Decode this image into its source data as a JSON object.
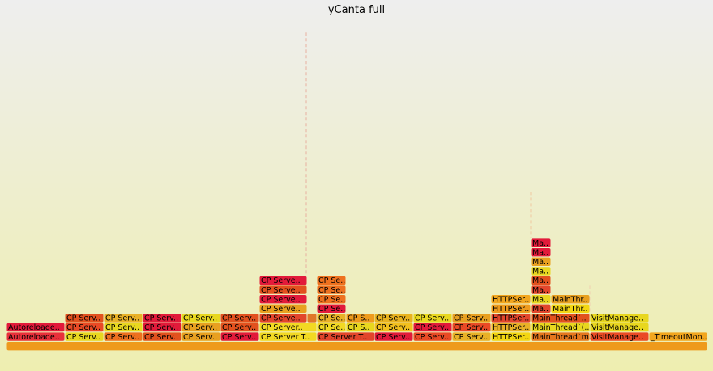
{
  "title": "yCanta full",
  "chart_data": {
    "type": "flamegraph",
    "title": "yCanta full",
    "level_unit": "stack depth",
    "width_unit": "samples",
    "total_samples": 865,
    "frames": [
      {
        "label": "",
        "level": 0,
        "start": 0,
        "width": 865,
        "color": "#ee9a1c"
      },
      {
        "label": "Autoreloade..",
        "level": 1,
        "start": 0,
        "width": 72,
        "color": "#e9303a"
      },
      {
        "label": "CP Serv..",
        "level": 1,
        "start": 72,
        "width": 48,
        "color": "#e8d71f"
      },
      {
        "label": "CP Serv..",
        "level": 1,
        "start": 120,
        "width": 48,
        "color": "#ee701e"
      },
      {
        "label": "CP Serv..",
        "level": 1,
        "start": 168,
        "width": 48,
        "color": "#e2511e"
      },
      {
        "label": "CP Serv..",
        "level": 1,
        "start": 216,
        "width": 48,
        "color": "#e8a020"
      },
      {
        "label": "CP Serv..",
        "level": 1,
        "start": 264,
        "width": 48,
        "color": "#e21a3a"
      },
      {
        "label": "CP Server T..",
        "level": 1,
        "start": 312,
        "width": 71,
        "color": "#f2d923"
      },
      {
        "label": "CP Server T..",
        "level": 1,
        "start": 383,
        "width": 71,
        "color": "#e2452b"
      },
      {
        "label": "CP Serv..",
        "level": 1,
        "start": 454,
        "width": 48,
        "color": "#e21a3a"
      },
      {
        "label": "CP Serv..",
        "level": 1,
        "start": 502,
        "width": 48,
        "color": "#ea4a25"
      },
      {
        "label": "CP Serv..",
        "level": 1,
        "start": 550,
        "width": 48,
        "color": "#e9b127"
      },
      {
        "label": "HTTPSer..",
        "level": 1,
        "start": 598,
        "width": 49,
        "color": "#f3d612"
      },
      {
        "label": "MainThread`m..",
        "level": 1,
        "start": 647,
        "width": 73,
        "color": "#e5771e"
      },
      {
        "label": "VisitManage..",
        "level": 1,
        "start": 720,
        "width": 73,
        "color": "#ea4a25"
      },
      {
        "label": "_TimeoutMon..",
        "level": 1,
        "start": 793,
        "width": 72,
        "color": "#f2a61e"
      },
      {
        "label": "Autoreloade..",
        "level": 2,
        "start": 0,
        "width": 72,
        "color": "#e21a3a"
      },
      {
        "label": "CP Serv..",
        "level": 2,
        "start": 72,
        "width": 48,
        "color": "#ea4a25"
      },
      {
        "label": "CP Serv..",
        "level": 2,
        "start": 120,
        "width": 48,
        "color": "#e8d71f"
      },
      {
        "label": "CP Serv..",
        "level": 2,
        "start": 168,
        "width": 48,
        "color": "#e21a3a"
      },
      {
        "label": "CP Serv..",
        "level": 2,
        "start": 216,
        "width": 48,
        "color": "#e8a020"
      },
      {
        "label": "CP Serv..",
        "level": 2,
        "start": 264,
        "width": 48,
        "color": "#e2511e"
      },
      {
        "label": "CP Server..",
        "level": 2,
        "start": 312,
        "width": 71,
        "color": "#f2d923"
      },
      {
        "label": "CP Se..",
        "level": 2,
        "start": 383,
        "width": 36,
        "color": "#f2d923"
      },
      {
        "label": "CP S..",
        "level": 2,
        "start": 419,
        "width": 35,
        "color": "#e8d71f"
      },
      {
        "label": "CP Serv..",
        "level": 2,
        "start": 454,
        "width": 48,
        "color": "#f2c01e"
      },
      {
        "label": "CP Serv..",
        "level": 2,
        "start": 502,
        "width": 48,
        "color": "#e21a3a"
      },
      {
        "label": "CP Serv..",
        "level": 2,
        "start": 550,
        "width": 48,
        "color": "#ea4a25"
      },
      {
        "label": "HTTPSer..",
        "level": 2,
        "start": 598,
        "width": 49,
        "color": "#e9b127"
      },
      {
        "label": "MainThread`(..",
        "level": 2,
        "start": 647,
        "width": 73,
        "color": "#e8d71f"
      },
      {
        "label": "VisitManage..",
        "level": 2,
        "start": 720,
        "width": 73,
        "color": "#e8d71f"
      },
      {
        "label": "CP Serv..",
        "level": 3,
        "start": 72,
        "width": 48,
        "color": "#e2511e"
      },
      {
        "label": "CP Serv..",
        "level": 3,
        "start": 120,
        "width": 48,
        "color": "#e9b127"
      },
      {
        "label": "CP Serv..",
        "level": 3,
        "start": 168,
        "width": 48,
        "color": "#e21a3a"
      },
      {
        "label": "CP Serv..",
        "level": 3,
        "start": 216,
        "width": 48,
        "color": "#e8d71f"
      },
      {
        "label": "CP Serv..",
        "level": 3,
        "start": 264,
        "width": 48,
        "color": "#e2511e"
      },
      {
        "label": "CP Serve..",
        "level": 3,
        "start": 312,
        "width": 59,
        "color": "#e2452b"
      },
      {
        "label": "",
        "level": 3,
        "start": 371,
        "width": 12,
        "color": "#e0762a"
      },
      {
        "label": "CP Se..",
        "level": 3,
        "start": 383,
        "width": 36,
        "color": "#e9b127"
      },
      {
        "label": "CP S..",
        "level": 3,
        "start": 419,
        "width": 35,
        "color": "#ee9a1c"
      },
      {
        "label": "CP Serv..",
        "level": 3,
        "start": 454,
        "width": 48,
        "color": "#e8b21f"
      },
      {
        "label": "CP Serv..",
        "level": 3,
        "start": 502,
        "width": 48,
        "color": "#e8d71f"
      },
      {
        "label": "CP Serv..",
        "level": 3,
        "start": 550,
        "width": 48,
        "color": "#e8a020"
      },
      {
        "label": "HTTPSer..",
        "level": 3,
        "start": 598,
        "width": 49,
        "color": "#e2452b"
      },
      {
        "label": "MainThread`..",
        "level": 3,
        "start": 647,
        "width": 73,
        "color": "#e2511e"
      },
      {
        "label": "VisitManage..",
        "level": 3,
        "start": 720,
        "width": 73,
        "color": "#e8d71f"
      },
      {
        "label": "CP Serve..",
        "level": 4,
        "start": 312,
        "width": 59,
        "color": "#e8a020"
      },
      {
        "label": "CP Se..",
        "level": 4,
        "start": 383,
        "width": 36,
        "color": "#e21a3a"
      },
      {
        "label": "HTTPSer..",
        "level": 4,
        "start": 598,
        "width": 49,
        "color": "#ee9a1c"
      },
      {
        "label": "Ma..",
        "level": 4,
        "start": 647,
        "width": 25,
        "color": "#e2452b"
      },
      {
        "label": "MainThr..",
        "level": 4,
        "start": 672,
        "width": 48,
        "color": "#f3d612"
      },
      {
        "label": "CP Serve..",
        "level": 5,
        "start": 312,
        "width": 59,
        "color": "#e21a3a"
      },
      {
        "label": "CP Se..",
        "level": 5,
        "start": 383,
        "width": 36,
        "color": "#ee701e"
      },
      {
        "label": "HTTPSer..",
        "level": 5,
        "start": 598,
        "width": 49,
        "color": "#f2a61e"
      },
      {
        "label": "Ma..",
        "level": 5,
        "start": 647,
        "width": 25,
        "color": "#e8d71f"
      },
      {
        "label": "MainThr..",
        "level": 5,
        "start": 672,
        "width": 48,
        "color": "#e8a020"
      },
      {
        "label": "CP Serve..",
        "level": 6,
        "start": 312,
        "width": 59,
        "color": "#e2511e"
      },
      {
        "label": "CP Se..",
        "level": 6,
        "start": 383,
        "width": 36,
        "color": "#ee701e"
      },
      {
        "label": "Ma..",
        "level": 6,
        "start": 647,
        "width": 25,
        "color": "#e2452b"
      },
      {
        "label": "CP Serve..",
        "level": 7,
        "start": 312,
        "width": 59,
        "color": "#e21a3a"
      },
      {
        "label": "CP Se..",
        "level": 7,
        "start": 383,
        "width": 36,
        "color": "#ee701e"
      },
      {
        "label": "Ma..",
        "level": 7,
        "start": 647,
        "width": 25,
        "color": "#e2511e"
      },
      {
        "label": "Ma..",
        "level": 8,
        "start": 647,
        "width": 25,
        "color": "#e8d71f"
      },
      {
        "label": "Ma..",
        "level": 9,
        "start": 647,
        "width": 25,
        "color": "#e8a020"
      },
      {
        "label": "Ma..",
        "level": 10,
        "start": 647,
        "width": 25,
        "color": "#e21a3a"
      },
      {
        "label": "Ma..",
        "level": 11,
        "start": 647,
        "width": 25,
        "color": "#e21a3a"
      }
    ],
    "thin_stacks": [
      {
        "start": 370,
        "from_level": 8,
        "to_level": 33,
        "color": "#e8b0a0"
      },
      {
        "start": 647,
        "from_level": 12,
        "to_level": 16,
        "color": "#f0c8a0"
      },
      {
        "start": 720,
        "from_level": 4,
        "to_level": 6,
        "color": "#f0d0b0"
      }
    ]
  }
}
